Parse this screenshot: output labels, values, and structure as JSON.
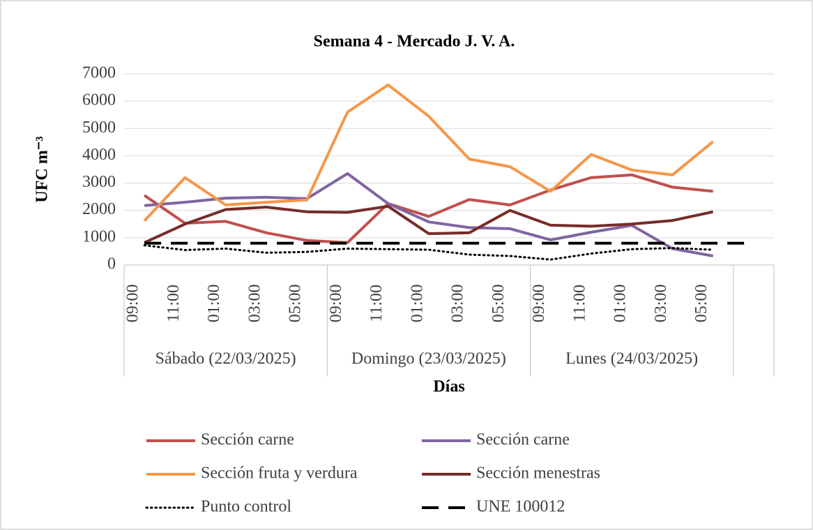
{
  "chart_data": {
    "type": "line",
    "title": "Semana 4 - Mercado J. V. A.",
    "x_label": "Días",
    "y_label": "UFC m⁻³",
    "categories": [
      "09:00",
      "11:00",
      "01:00",
      "03:00",
      "05:00",
      "09:00",
      "11:00",
      "01:00",
      "03:00",
      "05:00",
      "09:00",
      "11:00",
      "01:00",
      "03:00",
      "05:00",
      null
    ],
    "groups": [
      {
        "label": "Sábado (22/03/2025)",
        "span": 5
      },
      {
        "label": "Domingo (23/03/2025)",
        "span": 5
      },
      {
        "label": "Lunes (24/03/2025)",
        "span": 5
      }
    ],
    "ylim": [
      0,
      7000
    ],
    "yticks": [
      0,
      1000,
      2000,
      3000,
      4000,
      5000,
      6000,
      7000
    ],
    "grid": true,
    "legend": "bottom",
    "series": [
      {
        "name": "Sección carne",
        "color": "#c0504d",
        "style": "solid",
        "values": [
          2550,
          1530,
          1600,
          1180,
          900,
          820,
          2250,
          1780,
          2400,
          2200,
          2750,
          3200,
          3300,
          2850,
          2700,
          null
        ]
      },
      {
        "name": " Sección carne",
        "color": "#8064a2",
        "style": "solid",
        "values": [
          2180,
          2300,
          2450,
          2480,
          2430,
          3350,
          2250,
          1580,
          1370,
          1330,
          920,
          1200,
          1450,
          600,
          330,
          null
        ]
      },
      {
        "name": "Sección fruta y verdura",
        "color": "#f79646",
        "style": "solid",
        "values": [
          1620,
          3200,
          2200,
          2300,
          2380,
          5600,
          6600,
          5450,
          3880,
          3600,
          2700,
          4050,
          3480,
          3300,
          4520,
          null
        ]
      },
      {
        "name": "Sección menestras",
        "color": "#772c2a",
        "style": "solid",
        "values": [
          820,
          1500,
          2030,
          2120,
          1950,
          1930,
          2150,
          1150,
          1180,
          2000,
          1460,
          1420,
          1500,
          1630,
          1950,
          null
        ]
      },
      {
        "name": "Punto control",
        "color": "#000000",
        "style": "dotted",
        "values": [
          720,
          550,
          600,
          450,
          480,
          600,
          580,
          560,
          380,
          330,
          200,
          420,
          580,
          620,
          560,
          null
        ]
      },
      {
        "name": "UNE 100012",
        "color": "#000000",
        "style": "dashed",
        "values": [
          800,
          800,
          800,
          800,
          800,
          800,
          800,
          800,
          800,
          800,
          800,
          800,
          800,
          800,
          800,
          800
        ]
      }
    ]
  }
}
